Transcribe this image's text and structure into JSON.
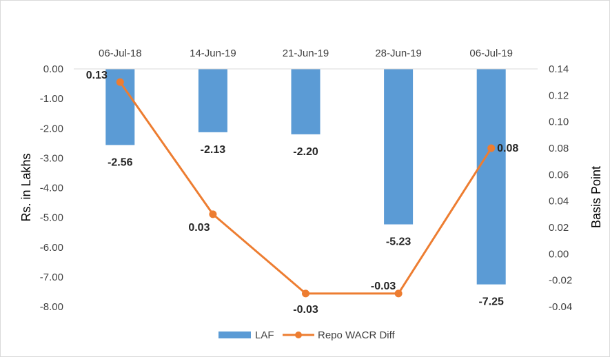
{
  "chart_data": {
    "type": "bar+line",
    "categories": [
      "06-Jul-18",
      "14-Jun-19",
      "21-Jun-19",
      "28-Jun-19",
      "06-Jul-19"
    ],
    "series": [
      {
        "name": "LAF",
        "type": "bar",
        "axis": "left",
        "values": [
          -2.56,
          -2.13,
          -2.2,
          -5.23,
          -7.25
        ],
        "labels": [
          "-2.56",
          "-2.13",
          "-2.20",
          "-5.23",
          "-7.25"
        ],
        "color": "#5b9bd5"
      },
      {
        "name": "Repo WACR Diff",
        "type": "line",
        "axis": "right",
        "values": [
          0.13,
          0.03,
          -0.03,
          -0.03,
          0.08
        ],
        "labels": [
          "0.13",
          "0.03",
          "-0.03",
          "-0.03",
          "0.08"
        ],
        "color": "#ed7d31"
      }
    ],
    "ylabel": "Rs. in Lakhs",
    "ylim": [
      -8,
      0
    ],
    "yticks": [
      "0.00",
      "-1.00",
      "-2.00",
      "-3.00",
      "-4.00",
      "-5.00",
      "-6.00",
      "-7.00",
      "-8.00"
    ],
    "y2label": "Basis Point",
    "y2lim": [
      -0.04,
      0.14
    ],
    "y2ticks": [
      "0.14",
      "0.12",
      "0.10",
      "0.08",
      "0.06",
      "0.04",
      "0.02",
      "0.00",
      "-0.02",
      "-0.04"
    ],
    "x_axis_position": "top",
    "grid": false,
    "legend_position": "bottom"
  }
}
